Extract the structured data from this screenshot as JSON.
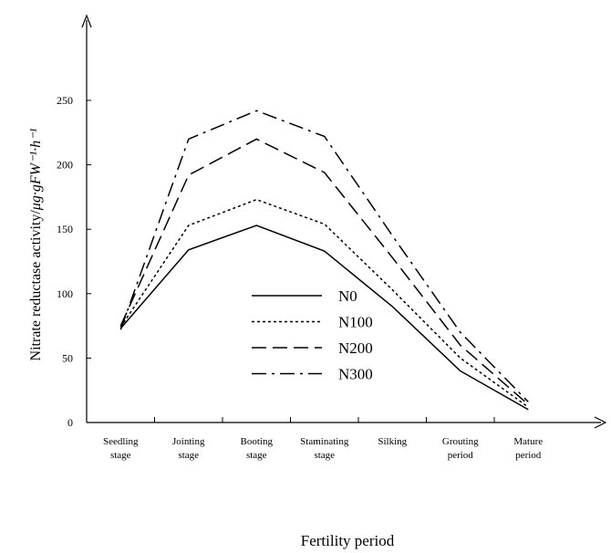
{
  "chart_data": {
    "type": "line",
    "title": "",
    "xlabel": "Fertility period",
    "ylabel": {
      "text": "Nitrate reductase activity/",
      "unit": "μg·gFW⁻¹·h⁻¹"
    },
    "ylim": [
      0,
      250
    ],
    "yticks": [
      0,
      50,
      100,
      150,
      200,
      250
    ],
    "categories": [
      [
        "Seedling",
        "stage"
      ],
      [
        "Jointing",
        "stage"
      ],
      [
        "Booting",
        "stage"
      ],
      [
        "Staminating",
        "stage"
      ],
      [
        "Silking"
      ],
      [
        "Grouting",
        "period"
      ],
      [
        "Mature",
        "period"
      ]
    ],
    "grid": false,
    "legend_position": "center-left",
    "series": [
      {
        "name": "N0",
        "dash": "solid",
        "points": [
          [
            0.5,
            73
          ],
          [
            1.5,
            134
          ],
          [
            2.5,
            153
          ],
          [
            3.5,
            133
          ],
          [
            4.5,
            90
          ],
          [
            5.5,
            40
          ],
          [
            6.5,
            10
          ]
        ]
      },
      {
        "name": "N100",
        "dash": "dotted",
        "points": [
          [
            0.5,
            74
          ],
          [
            1.5,
            153
          ],
          [
            2.5,
            173
          ],
          [
            3.5,
            154
          ],
          [
            4.5,
            103
          ],
          [
            5.5,
            50
          ],
          [
            6.5,
            12
          ]
        ]
      },
      {
        "name": "N200",
        "dash": "dashed",
        "points": [
          [
            0.5,
            75
          ],
          [
            1.5,
            192
          ],
          [
            2.5,
            220
          ],
          [
            3.5,
            194
          ],
          [
            4.5,
            128
          ],
          [
            5.5,
            60
          ],
          [
            6.5,
            14
          ]
        ]
      },
      {
        "name": "N300",
        "dash": "dashdot",
        "points": [
          [
            0.5,
            72
          ],
          [
            1.5,
            220
          ],
          [
            2.5,
            242
          ],
          [
            3.5,
            222
          ],
          [
            4.5,
            145
          ],
          [
            5.5,
            70
          ],
          [
            6.5,
            16
          ]
        ]
      }
    ]
  }
}
